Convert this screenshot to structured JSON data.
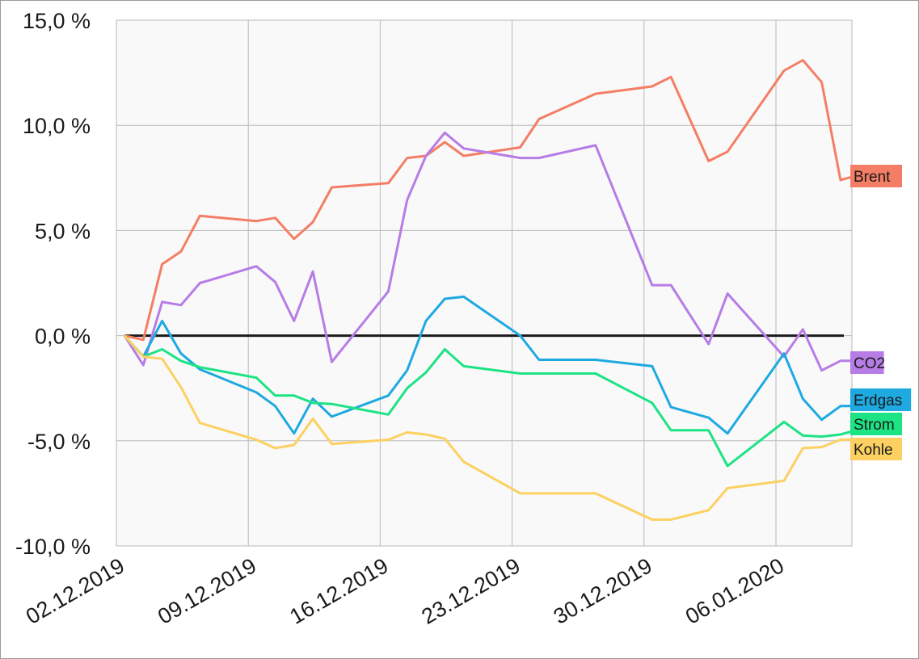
{
  "chart_data": {
    "type": "line",
    "title": "",
    "xlabel": "",
    "ylabel": "",
    "x_tick_labels": [
      "02.12.2019",
      "09.12.2019",
      "16.12.2019",
      "23.12.2019",
      "30.12.2019",
      "06.01.2020"
    ],
    "y_tick_labels": [
      "15,0 %",
      "10,0 %",
      "5,0 %",
      "0,0 %",
      "-5,0 %",
      "-10,0 %"
    ],
    "y_ticks": [
      15,
      10,
      5,
      0,
      -5,
      -10
    ],
    "ylim": [
      -10,
      15
    ],
    "xlim": [
      "2019-12-02",
      "2020-01-10"
    ],
    "grid": true,
    "zero_line": true,
    "series": [
      {
        "name": "Brent",
        "color": "#f47e65",
        "x": [
          "2019-12-02",
          "2019-12-03",
          "2019-12-04",
          "2019-12-05",
          "2019-12-06",
          "2019-12-09",
          "2019-12-10",
          "2019-12-11",
          "2019-12-12",
          "2019-12-13",
          "2019-12-16",
          "2019-12-17",
          "2019-12-18",
          "2019-12-19",
          "2019-12-20",
          "2019-12-23",
          "2019-12-24",
          "2019-12-27",
          "2019-12-30",
          "2019-12-31",
          "2020-01-02",
          "2020-01-03",
          "2020-01-06",
          "2020-01-07",
          "2020-01-08",
          "2020-01-09",
          "2020-01-10"
        ],
        "values": [
          0,
          -0.2,
          3.4,
          4.0,
          5.7,
          5.45,
          5.6,
          4.6,
          5.4,
          7.05,
          7.25,
          8.45,
          8.55,
          9.2,
          8.55,
          8.95,
          10.3,
          11.5,
          11.85,
          12.3,
          8.3,
          8.75,
          12.6,
          13.1,
          12.05,
          7.4,
          7.65
        ]
      },
      {
        "name": "CO2",
        "color": "#b77ce6",
        "x": [
          "2019-12-02",
          "2019-12-03",
          "2019-12-04",
          "2019-12-05",
          "2019-12-06",
          "2019-12-09",
          "2019-12-10",
          "2019-12-11",
          "2019-12-12",
          "2019-12-13",
          "2019-12-16",
          "2019-12-17",
          "2019-12-18",
          "2019-12-19",
          "2019-12-20",
          "2019-12-23",
          "2019-12-24",
          "2019-12-27",
          "2019-12-30",
          "2019-12-31",
          "2020-01-02",
          "2020-01-03",
          "2020-01-06",
          "2020-01-07",
          "2020-01-08",
          "2020-01-09",
          "2020-01-10"
        ],
        "values": [
          0,
          -1.4,
          1.6,
          1.45,
          2.5,
          3.3,
          2.55,
          0.7,
          3.05,
          -1.25,
          2.1,
          6.45,
          8.55,
          9.65,
          8.9,
          8.45,
          8.45,
          9.05,
          2.4,
          2.4,
          -0.4,
          2.0,
          -1.0,
          0.3,
          -1.65,
          -1.2,
          -1.2
        ]
      },
      {
        "name": "Erdgas",
        "color": "#1ea9e1",
        "x": [
          "2019-12-02",
          "2019-12-03",
          "2019-12-04",
          "2019-12-05",
          "2019-12-06",
          "2019-12-09",
          "2019-12-10",
          "2019-12-11",
          "2019-12-12",
          "2019-12-13",
          "2019-12-16",
          "2019-12-17",
          "2019-12-18",
          "2019-12-19",
          "2019-12-20",
          "2019-12-23",
          "2019-12-24",
          "2019-12-27",
          "2019-12-30",
          "2019-12-31",
          "2020-01-02",
          "2020-01-03",
          "2020-01-06",
          "2020-01-07",
          "2020-01-08",
          "2020-01-09",
          "2020-01-10"
        ],
        "values": [
          0,
          -1.0,
          0.7,
          -0.85,
          -1.6,
          -2.7,
          -3.35,
          -4.65,
          -3.0,
          -3.85,
          -2.85,
          -1.65,
          0.7,
          1.75,
          1.85,
          0,
          -1.15,
          -1.15,
          -1.45,
          -3.4,
          -3.9,
          -4.65,
          -0.85,
          -3.0,
          -4.0,
          -3.35,
          -3.35
        ]
      },
      {
        "name": "Strom",
        "color": "#1ce383",
        "x": [
          "2019-12-02",
          "2019-12-03",
          "2019-12-04",
          "2019-12-05",
          "2019-12-06",
          "2019-12-09",
          "2019-12-10",
          "2019-12-11",
          "2019-12-12",
          "2019-12-13",
          "2019-12-16",
          "2019-12-17",
          "2019-12-18",
          "2019-12-19",
          "2019-12-20",
          "2019-12-23",
          "2019-12-24",
          "2019-12-27",
          "2019-12-30",
          "2019-12-31",
          "2020-01-02",
          "2020-01-03",
          "2020-01-06",
          "2020-01-07",
          "2020-01-08",
          "2020-01-09",
          "2020-01-10"
        ],
        "values": [
          0,
          -1.0,
          -0.65,
          -1.2,
          -1.5,
          -2.0,
          -2.85,
          -2.85,
          -3.2,
          -3.25,
          -3.75,
          -2.5,
          -1.75,
          -0.65,
          -1.45,
          -1.8,
          -1.8,
          -1.8,
          -3.2,
          -4.5,
          -4.5,
          -6.2,
          -4.1,
          -4.75,
          -4.8,
          -4.7,
          -4.45
        ]
      },
      {
        "name": "Kohle",
        "color": "#fcd161",
        "x": [
          "2019-12-02",
          "2019-12-03",
          "2019-12-04",
          "2019-12-05",
          "2019-12-06",
          "2019-12-09",
          "2019-12-10",
          "2019-12-11",
          "2019-12-12",
          "2019-12-13",
          "2019-12-16",
          "2019-12-17",
          "2019-12-18",
          "2019-12-19",
          "2019-12-20",
          "2019-12-23",
          "2019-12-24",
          "2019-12-27",
          "2019-12-30",
          "2019-12-31",
          "2020-01-02",
          "2020-01-03",
          "2020-01-06",
          "2020-01-07",
          "2020-01-08",
          "2020-01-09",
          "2020-01-10"
        ],
        "values": [
          0,
          -1.0,
          -1.1,
          -2.45,
          -4.15,
          -4.95,
          -5.35,
          -5.2,
          -3.95,
          -5.15,
          -4.95,
          -4.6,
          -4.7,
          -4.9,
          -6.0,
          -7.5,
          -7.5,
          -7.5,
          -8.75,
          -8.75,
          -8.3,
          -7.25,
          -6.9,
          -5.35,
          -5.3,
          -4.95,
          -4.95
        ]
      }
    ]
  }
}
